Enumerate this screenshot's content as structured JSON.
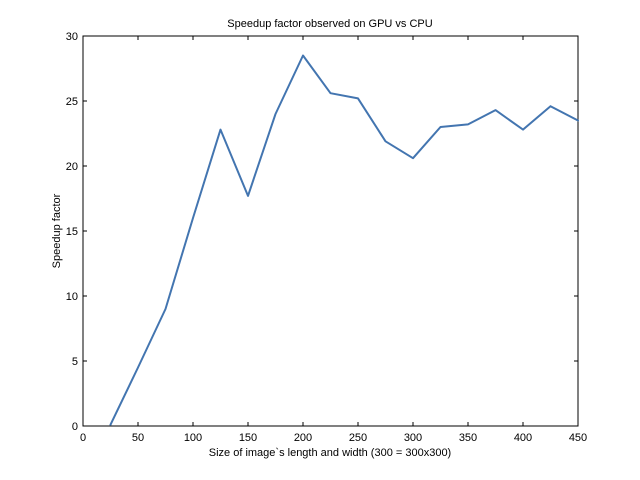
{
  "chart_data": {
    "type": "line",
    "title": "Speedup factor observed on GPU vs CPU",
    "xlabel": "Size of image`s length and width (300 = 300x300)",
    "ylabel": "Speedup factor",
    "xlim": [
      0,
      450
    ],
    "ylim": [
      0,
      30
    ],
    "x_ticks": [
      0,
      50,
      100,
      150,
      200,
      250,
      300,
      350,
      400,
      450
    ],
    "y_ticks": [
      0,
      5,
      10,
      15,
      20,
      25,
      30
    ],
    "grid": false,
    "legend": "none",
    "line_color": "#4375b0",
    "series": [
      {
        "x": [
          25,
          50,
          75,
          100,
          125,
          150,
          175,
          200,
          225,
          250,
          275,
          300,
          325,
          350,
          375,
          400,
          425,
          450
        ],
        "values": [
          0.1,
          4.5,
          9.0,
          16.0,
          22.8,
          17.7,
          24.0,
          28.5,
          25.6,
          25.2,
          21.9,
          20.6,
          23.0,
          23.2,
          24.3,
          22.8,
          24.6,
          23.5
        ]
      }
    ]
  }
}
